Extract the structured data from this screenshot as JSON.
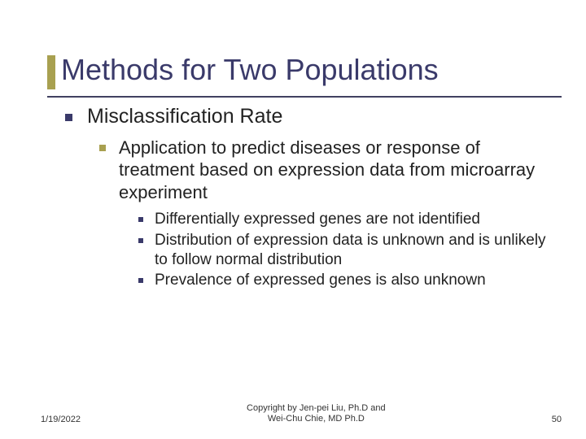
{
  "slide": {
    "title": "Methods for Two Populations",
    "title_color": "#3a3a6a",
    "title_fontsize": 36,
    "accent_color": "#a8a050",
    "underline_color": "#404060",
    "background_color": "#ffffff",
    "bullets": {
      "level1": {
        "text": "Misclassification Rate",
        "fontsize": 25,
        "bullet_color": "#3a3a6a",
        "bullet_size": 9
      },
      "level2": {
        "text": "Application to predict diseases or response of treatment based on expression data from microarray experiment",
        "fontsize": 22,
        "bullet_color": "#a8a050",
        "bullet_size": 8
      },
      "level3": [
        {
          "text": "Differentially expressed genes are not identified"
        },
        {
          "text": "Distribution of expression data is unknown and is unlikely to follow normal distribution"
        },
        {
          "text": "Prevalence of expressed genes is also unknown"
        }
      ],
      "level3_style": {
        "fontsize": 19,
        "bullet_color": "#3a3a6a",
        "bullet_size": 6
      }
    },
    "footer": {
      "date": "1/19/2022",
      "copyright": "Copyright by Jen-pei Liu, Ph.D and\nWei-Chu Chie, MD Ph.D",
      "page": "50",
      "fontsize": 11
    }
  }
}
